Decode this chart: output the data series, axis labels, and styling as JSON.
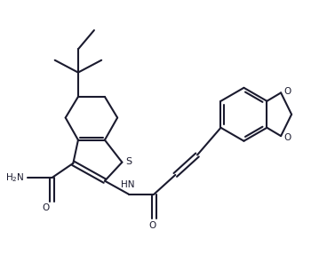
{
  "bg": "#ffffff",
  "lc": "#1a1a2e",
  "lw": 1.5,
  "figsize": [
    3.77,
    3.04
  ],
  "dpi": 100,
  "xlim": [
    0,
    10
  ],
  "ylim": [
    0,
    8
  ],
  "font_size": 7.5
}
